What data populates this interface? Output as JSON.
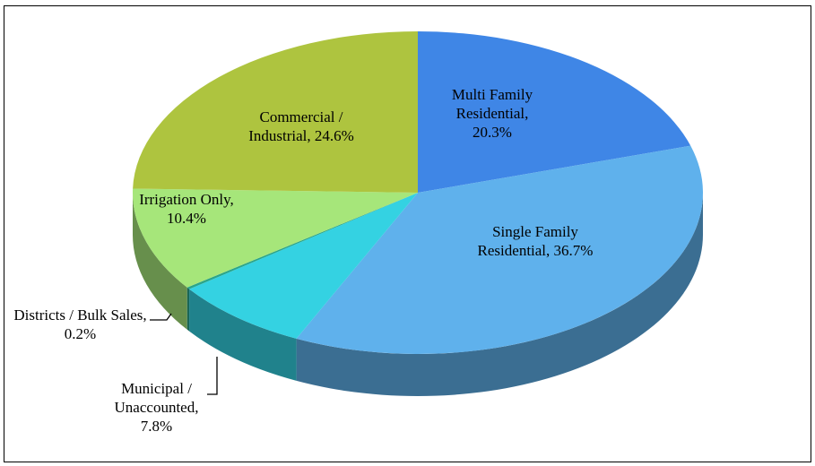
{
  "chart_data": {
    "type": "pie3d",
    "categories": [
      "Multi Family Residential,",
      "Single Family Residential,",
      "Municipal / Unaccounted,",
      "Districts / Bulk Sales,",
      "Irrigation Only,",
      "Commercial / Industrial,"
    ],
    "values": [
      20.3,
      36.7,
      7.8,
      0.2,
      10.4,
      24.6
    ],
    "value_labels": [
      "20.3%",
      "36.7%",
      "7.8%",
      "0.2%",
      "10.4%",
      "24.6%"
    ],
    "colors": [
      "#3f86e6",
      "#5fb1ec",
      "#34d2e2",
      "#2aa58a",
      "#a6e67a",
      "#aec43f"
    ]
  }
}
